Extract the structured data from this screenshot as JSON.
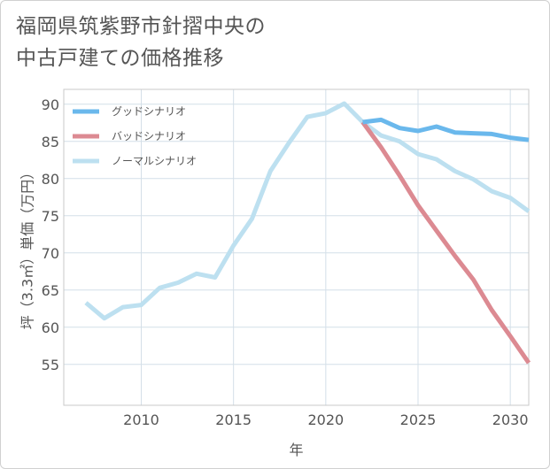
{
  "title": {
    "line1": "福岡県筑紫野市針摺中央の",
    "line2": "中古戸建ての価格推移"
  },
  "chart_data": {
    "type": "line",
    "xlabel": "年",
    "ylabel": "坪（3.3㎡）単価（万円）",
    "xlim": [
      2005.8,
      2031
    ],
    "ylim": [
      49.5,
      92
    ],
    "x_ticks": [
      2010,
      2015,
      2020,
      2025,
      2030
    ],
    "y_ticks": [
      55,
      60,
      65,
      70,
      75,
      80,
      85,
      90
    ],
    "grid": true,
    "legend_position": "top-left",
    "series": [
      {
        "name": "グッドシナリオ",
        "color": "#6ab8ec",
        "x": [
          2022,
          2023,
          2024,
          2025,
          2026,
          2027,
          2028,
          2029,
          2030,
          2031
        ],
        "y": [
          87.6,
          87.9,
          86.8,
          86.4,
          87.0,
          86.2,
          86.1,
          86.0,
          85.5,
          85.2
        ]
      },
      {
        "name": "バッドシナリオ",
        "color": "#dc8a92",
        "x": [
          2022,
          2023,
          2024,
          2025,
          2026,
          2027,
          2028,
          2029,
          2030,
          2031
        ],
        "y": [
          87.6,
          84.2,
          80.4,
          76.4,
          73.0,
          69.6,
          66.4,
          62.3,
          58.8,
          55.2
        ]
      },
      {
        "name": "ノーマルシナリオ",
        "color": "#bde0f0",
        "x": [
          2007,
          2008,
          2009,
          2010,
          2011,
          2012,
          2013,
          2014,
          2015,
          2016,
          2017,
          2018,
          2019,
          2020,
          2021,
          2022,
          2023,
          2024,
          2025,
          2026,
          2027,
          2028,
          2029,
          2030,
          2031
        ],
        "y": [
          63.3,
          61.2,
          62.7,
          63.0,
          65.3,
          66.0,
          67.2,
          66.7,
          71.0,
          74.6,
          81.0,
          84.8,
          88.3,
          88.8,
          90.1,
          87.6,
          85.8,
          85.0,
          83.3,
          82.6,
          81.0,
          79.9,
          78.3,
          77.4,
          75.6
        ]
      }
    ]
  }
}
